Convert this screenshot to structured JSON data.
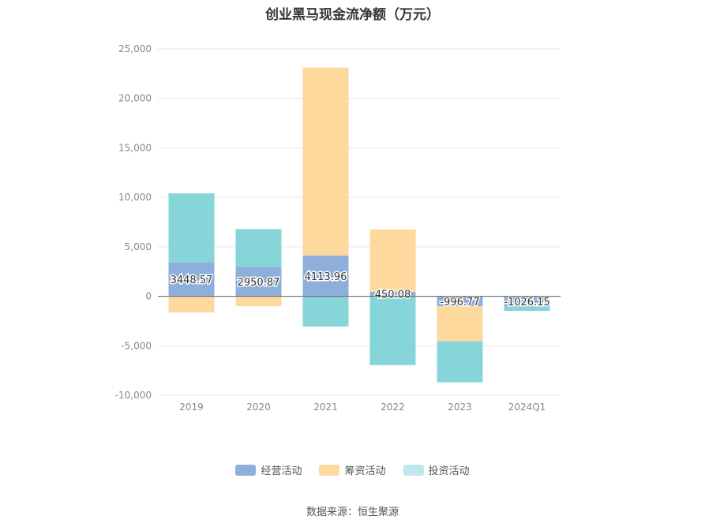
{
  "chart_data": {
    "type": "bar",
    "stacked": true,
    "title": "创业黑马现金流净额（万元）",
    "categories": [
      "2019",
      "2020",
      "2021",
      "2022",
      "2023",
      "2024Q1"
    ],
    "series": [
      {
        "name": "经营活动",
        "color": "#8eaedc",
        "values": [
          3448.57,
          2950.87,
          4113.96,
          450.08,
          -996.77,
          -1026.15
        ]
      },
      {
        "name": "筹资活动",
        "color": "#fdd99e",
        "values": [
          -1650,
          -1000,
          19000,
          6300,
          -3550,
          0
        ]
      },
      {
        "name": "投资活动",
        "color": "#86d5d8",
        "values": [
          6950,
          3850,
          -3050,
          -6950,
          -4150,
          -450
        ]
      }
    ],
    "data_labels": [
      "3448.57",
      "2950.87",
      "4113.96",
      "450.08",
      "-996.77",
      "-1026.15"
    ],
    "ylim": [
      -10000,
      25000
    ],
    "yticks": [
      -10000,
      -5000,
      0,
      5000,
      10000,
      15000,
      20000,
      25000
    ],
    "ytick_labels": [
      "-10,000",
      "-5,000",
      "0",
      "5,000",
      "10,000",
      "15,000",
      "20,000",
      "25,000"
    ],
    "grid": true,
    "legend_position": "bottom",
    "xlabel": "",
    "ylabel": ""
  },
  "source": "数据来源：恒生聚源"
}
